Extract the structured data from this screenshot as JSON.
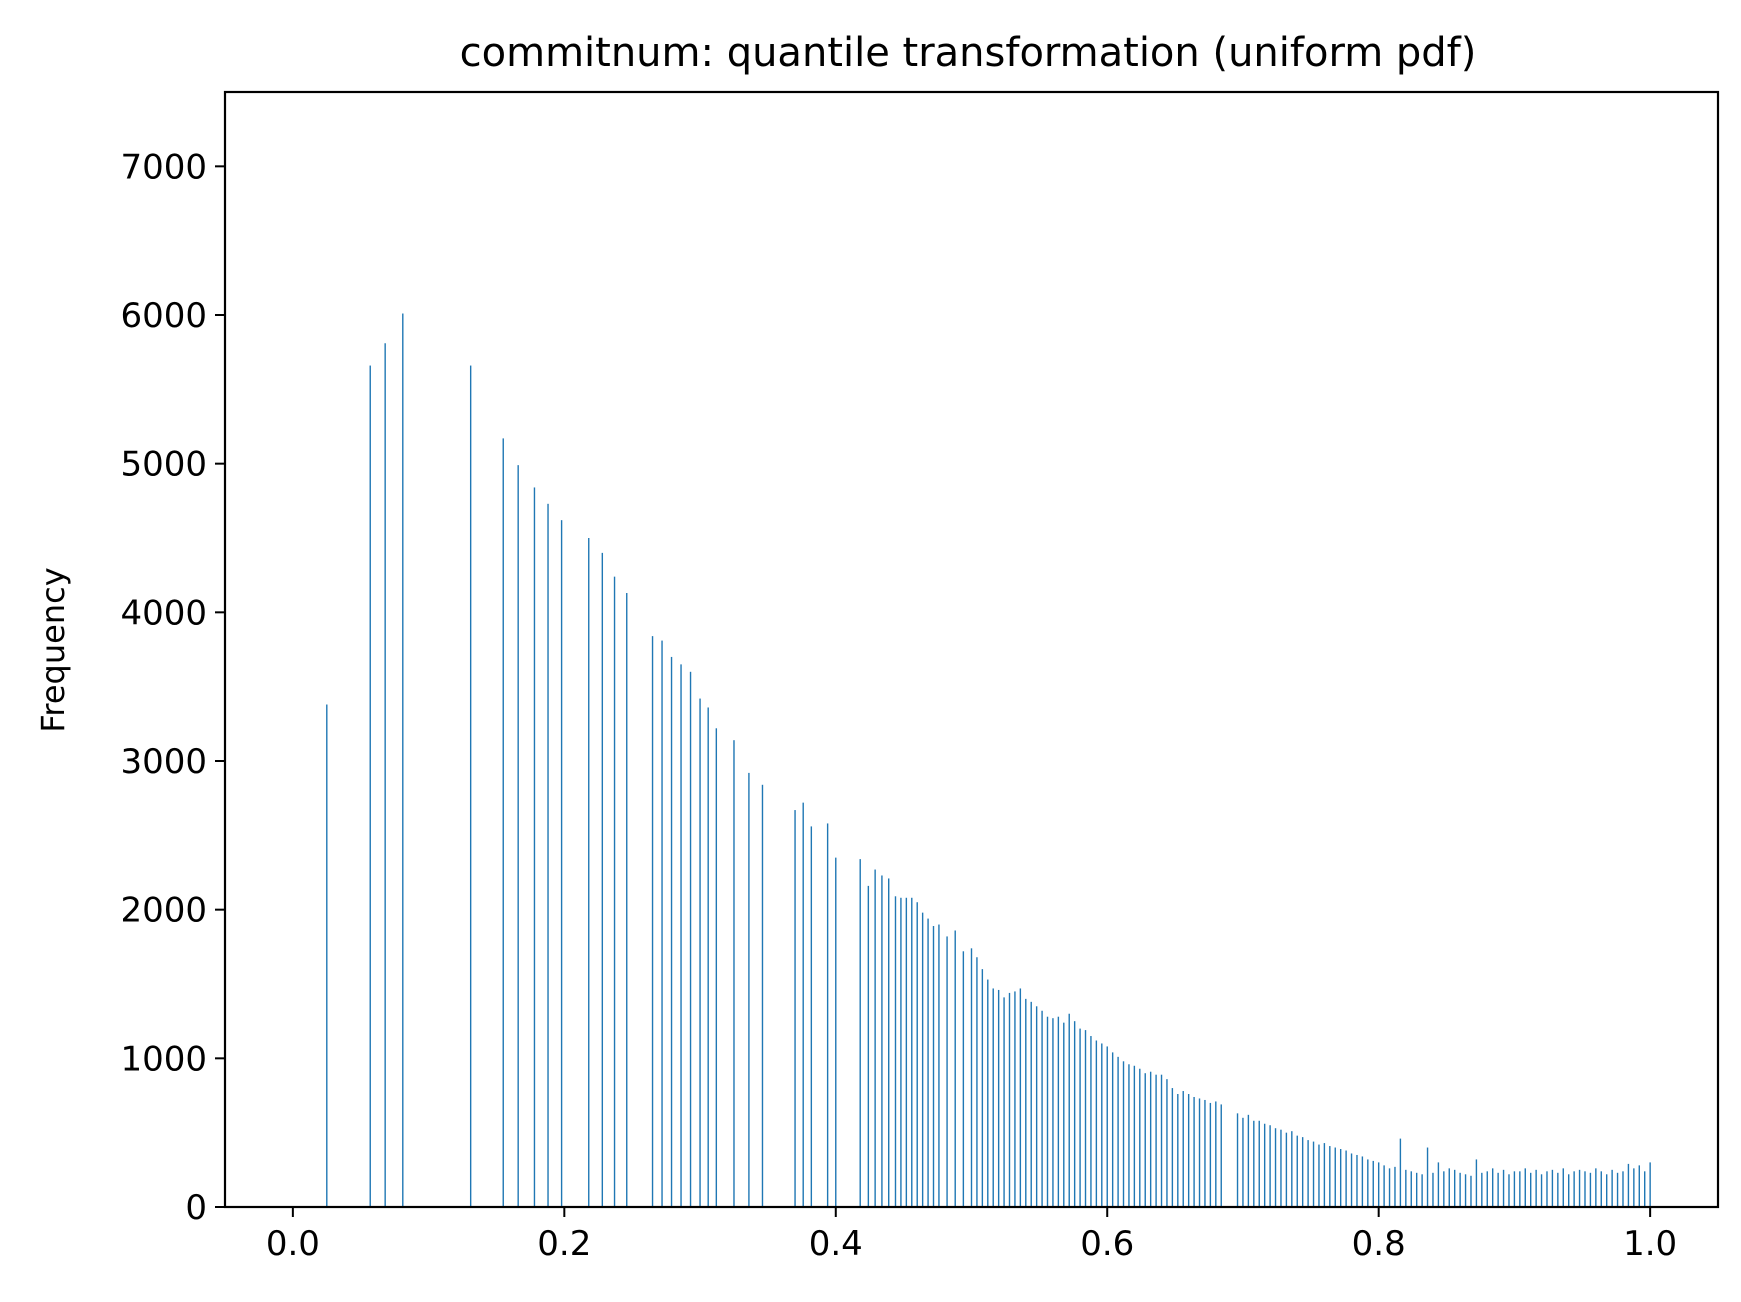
{
  "chart_data": {
    "type": "bar",
    "title": "commitnum: quantile transformation (uniform pdf)",
    "xlabel": "",
    "ylabel": "Frequency",
    "xlim": [
      -0.05,
      1.05
    ],
    "ylim": [
      0,
      7500
    ],
    "x_ticks": [
      0.0,
      0.2,
      0.4,
      0.6,
      0.8,
      1.0
    ],
    "x_tick_labels": [
      "0.0",
      "0.2",
      "0.4",
      "0.6",
      "0.8",
      "1.0"
    ],
    "y_ticks": [
      0,
      1000,
      2000,
      3000,
      4000,
      5000,
      6000,
      7000
    ],
    "y_tick_labels": [
      "0",
      "1000",
      "2000",
      "3000",
      "4000",
      "5000",
      "6000",
      "7000"
    ],
    "grid": false,
    "legend": "none",
    "bar_color": "#1f77b4",
    "x": [
      0.025,
      0.057,
      0.068,
      0.081,
      0.131,
      0.155,
      0.166,
      0.178,
      0.188,
      0.198,
      0.218,
      0.228,
      0.237,
      0.246,
      0.265,
      0.272,
      0.279,
      0.286,
      0.293,
      0.3,
      0.306,
      0.312,
      0.325,
      0.336,
      0.346,
      0.37,
      0.376,
      0.382,
      0.394,
      0.4,
      0.418,
      0.424,
      0.429,
      0.434,
      0.439,
      0.444,
      0.448,
      0.452,
      0.456,
      0.46,
      0.464,
      0.468,
      0.472,
      0.476,
      0.482,
      0.488,
      0.494,
      0.5,
      0.504,
      0.508,
      0.512,
      0.516,
      0.52,
      0.524,
      0.528,
      0.532,
      0.536,
      0.54,
      0.544,
      0.548,
      0.552,
      0.556,
      0.56,
      0.564,
      0.568,
      0.572,
      0.576,
      0.58,
      0.584,
      0.588,
      0.592,
      0.596,
      0.6,
      0.604,
      0.608,
      0.612,
      0.616,
      0.62,
      0.624,
      0.628,
      0.632,
      0.636,
      0.64,
      0.644,
      0.648,
      0.652,
      0.656,
      0.66,
      0.664,
      0.668,
      0.672,
      0.676,
      0.68,
      0.684,
      0.696,
      0.7,
      0.704,
      0.708,
      0.712,
      0.716,
      0.72,
      0.724,
      0.728,
      0.732,
      0.736,
      0.74,
      0.744,
      0.748,
      0.752,
      0.756,
      0.76,
      0.764,
      0.768,
      0.772,
      0.776,
      0.78,
      0.784,
      0.788,
      0.792,
      0.796,
      0.8,
      0.804,
      0.808,
      0.812,
      0.816,
      0.82,
      0.824,
      0.828,
      0.832,
      0.836,
      0.84,
      0.844,
      0.848,
      0.852,
      0.856,
      0.86,
      0.864,
      0.868,
      0.872,
      0.876,
      0.88,
      0.884,
      0.888,
      0.892,
      0.896,
      0.9,
      0.904,
      0.908,
      0.912,
      0.916,
      0.92,
      0.924,
      0.928,
      0.932,
      0.936,
      0.94,
      0.944,
      0.948,
      0.952,
      0.956,
      0.96,
      0.964,
      0.968,
      0.972,
      0.976,
      0.98,
      0.984,
      0.988,
      0.992,
      0.996,
      1.0
    ],
    "values": [
      3380,
      5660,
      5810,
      6010,
      5660,
      5170,
      4990,
      4840,
      4730,
      4620,
      4500,
      4400,
      4240,
      4130,
      3840,
      3810,
      3700,
      3650,
      3600,
      3420,
      3360,
      3220,
      3140,
      2920,
      2840,
      2670,
      2720,
      2560,
      2580,
      2350,
      2340,
      2160,
      2270,
      2230,
      2210,
      2090,
      2080,
      2080,
      2080,
      2050,
      1980,
      1940,
      1890,
      1900,
      1820,
      1860,
      1720,
      1740,
      1680,
      1600,
      1530,
      1470,
      1460,
      1410,
      1440,
      1450,
      1470,
      1400,
      1380,
      1350,
      1320,
      1280,
      1270,
      1280,
      1240,
      1300,
      1250,
      1200,
      1190,
      1150,
      1120,
      1100,
      1080,
      1040,
      1010,
      980,
      960,
      950,
      930,
      900,
      910,
      890,
      890,
      860,
      800,
      760,
      780,
      760,
      740,
      730,
      720,
      700,
      710,
      690,
      630,
      600,
      620,
      580,
      580,
      560,
      550,
      530,
      520,
      500,
      510,
      480,
      470,
      450,
      440,
      420,
      430,
      410,
      400,
      390,
      380,
      360,
      350,
      340,
      320,
      310,
      300,
      280,
      260,
      270,
      460,
      250,
      240,
      230,
      220,
      400,
      230,
      300,
      240,
      260,
      250,
      230,
      220,
      210,
      320,
      230,
      240,
      260,
      230,
      250,
      220,
      240,
      240,
      260,
      230,
      250,
      220,
      240,
      250,
      230,
      260,
      220,
      240,
      250,
      240,
      230,
      260,
      240,
      220,
      250,
      230,
      240,
      290,
      260,
      280,
      240,
      300
    ]
  }
}
